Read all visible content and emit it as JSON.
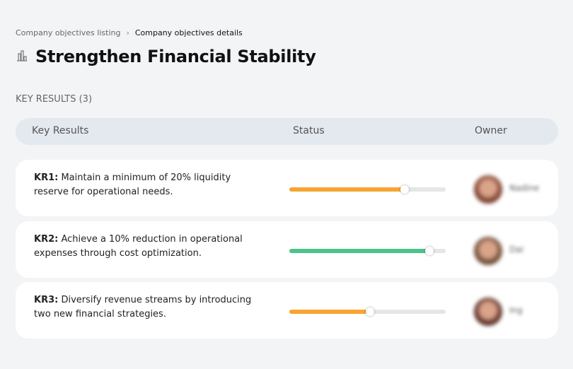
{
  "breadcrumb": {
    "parent": "Company objectives listing",
    "current": "Company objectives details"
  },
  "title": "Strengthen Financial Stability",
  "title_icon": "building-chart-icon",
  "section_label": "KEY RESULTS (3)",
  "columns": {
    "key_results": "Key Results",
    "status": "Status",
    "owner": "Owner"
  },
  "rows": [
    {
      "id": "KR1:",
      "text": " Maintain a minimum of 20% liquidity reserve for operational needs.",
      "progress": 74,
      "color": "#f7a531",
      "owner": "Nadine",
      "avatar_color": "#7a3b2a"
    },
    {
      "id": "KR2:",
      "text": " Achieve a 10% reduction in operational expenses through cost optimization.",
      "progress": 90,
      "color": "#4cc38a",
      "owner": "Dai",
      "avatar_color": "#6b4a35"
    },
    {
      "id": "KR3:",
      "text": " Diversify revenue streams by introducing two new financial strategies.",
      "progress": 52,
      "color": "#f7a531",
      "owner": "Ing",
      "avatar_color": "#5a2e26"
    }
  ]
}
